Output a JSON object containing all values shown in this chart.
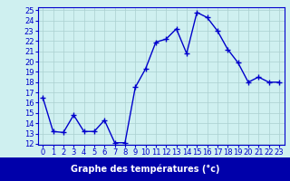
{
  "hours": [
    0,
    1,
    2,
    3,
    4,
    5,
    6,
    7,
    8,
    9,
    10,
    11,
    12,
    13,
    14,
    15,
    16,
    17,
    18,
    19,
    20,
    21,
    22,
    23
  ],
  "temps": [
    16.5,
    13.2,
    13.1,
    14.8,
    13.2,
    13.2,
    14.3,
    12.1,
    12.1,
    17.5,
    19.3,
    21.9,
    22.2,
    23.2,
    20.8,
    24.8,
    24.3,
    23.0,
    21.2,
    19.9,
    18.0,
    18.5,
    18.0,
    18.0
  ],
  "line_color": "#0000cc",
  "marker": "+",
  "marker_size": 4,
  "bg_color": "#cff0f0",
  "grid_color": "#aad0d0",
  "xlabel": "Graphe des températures (°c)",
  "xlabel_bg": "#0000aa",
  "xlabel_color": "#ffffff",
  "ylim": [
    12,
    25
  ],
  "xlim": [
    -0.5,
    23.5
  ],
  "yticks": [
    12,
    13,
    14,
    15,
    16,
    17,
    18,
    19,
    20,
    21,
    22,
    23,
    24,
    25
  ],
  "xticks": [
    0,
    1,
    2,
    3,
    4,
    5,
    6,
    7,
    8,
    9,
    10,
    11,
    12,
    13,
    14,
    15,
    16,
    17,
    18,
    19,
    20,
    21,
    22,
    23
  ],
  "tick_fontsize": 6,
  "xlabel_fontsize": 7
}
